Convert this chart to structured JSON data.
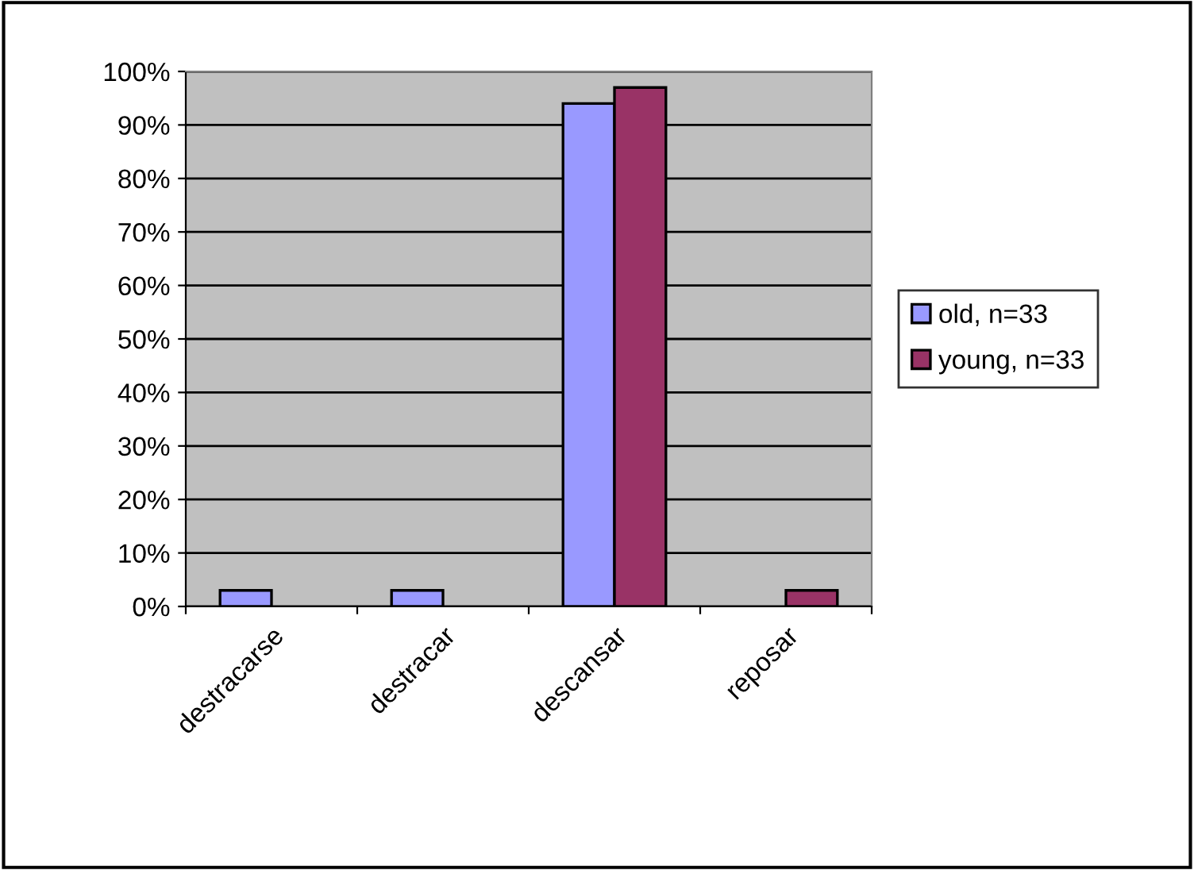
{
  "chart_data": {
    "type": "bar",
    "categories": [
      "destracarse",
      "destracar",
      "descansar",
      "reposar"
    ],
    "series": [
      {
        "name": "old, n=33",
        "color": "#9999ff",
        "values": [
          3,
          3,
          94,
          0
        ]
      },
      {
        "name": "young, n=33",
        "color": "#993366",
        "values": [
          0,
          0,
          97,
          3
        ]
      }
    ],
    "ylim": [
      0,
      100
    ],
    "yticks": [
      {
        "value": 0,
        "label": "0%"
      },
      {
        "value": 10,
        "label": "10%"
      },
      {
        "value": 20,
        "label": "20%"
      },
      {
        "value": 30,
        "label": "30%"
      },
      {
        "value": 40,
        "label": "40%"
      },
      {
        "value": 50,
        "label": "50%"
      },
      {
        "value": 60,
        "label": "60%"
      },
      {
        "value": 70,
        "label": "70%"
      },
      {
        "value": 80,
        "label": "80%"
      },
      {
        "value": 90,
        "label": "90%"
      },
      {
        "value": 100,
        "label": "100%"
      }
    ],
    "grid": "y",
    "legend": "right"
  }
}
